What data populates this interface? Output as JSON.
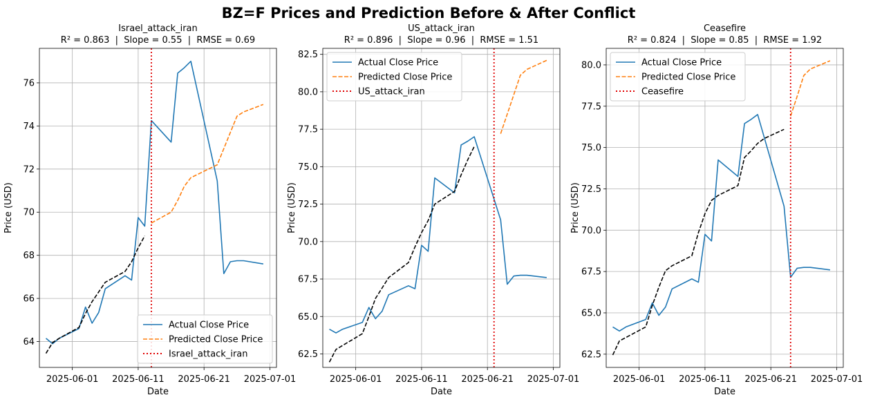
{
  "figure_title": "BZ=F Prices and Prediction Before & After Conflict",
  "chart_data": [
    {
      "type": "line",
      "title": "Israel_attack_iran",
      "subtitle": "R² = 0.863  |  Slope = 0.55  |  RMSE = 0.69",
      "xlabel": "Date",
      "ylabel": "Price (USD)",
      "xlim": [
        "2025-05-27",
        "2025-07-02"
      ],
      "ylim": [
        62.8,
        77.6
      ],
      "xticks": [
        "2025-06-01",
        "2025-06-11",
        "2025-06-21",
        "2025-07-01"
      ],
      "yticks": [
        64,
        66,
        68,
        70,
        72,
        74,
        76
      ],
      "grid": true,
      "legend_position": "lower-right",
      "event_date": "2025-06-13",
      "series": [
        {
          "name": "Actual Close Price",
          "color": "#1f77b4",
          "style": "solid",
          "x": [
            "2025-05-28",
            "2025-05-29",
            "2025-05-30",
            "2025-06-02",
            "2025-06-03",
            "2025-06-04",
            "2025-06-05",
            "2025-06-06",
            "2025-06-09",
            "2025-06-10",
            "2025-06-11",
            "2025-06-12",
            "2025-06-13",
            "2025-06-16",
            "2025-06-17",
            "2025-06-18",
            "2025-06-19",
            "2025-06-23",
            "2025-06-24",
            "2025-06-25",
            "2025-06-26",
            "2025-06-27",
            "2025-06-30"
          ],
          "y": [
            64.15,
            63.9,
            64.15,
            64.6,
            65.6,
            64.85,
            65.35,
            66.45,
            67.05,
            66.85,
            69.75,
            69.35,
            74.25,
            73.25,
            76.45,
            76.7,
            77.0,
            71.45,
            67.15,
            67.7,
            67.75,
            67.75,
            67.6
          ]
        },
        {
          "name": "Predicted Close Price",
          "color": "#ff7f0e",
          "style": "dashed",
          "x": [
            "2025-06-13",
            "2025-06-16",
            "2025-06-17",
            "2025-06-18",
            "2025-06-19",
            "2025-06-23",
            "2025-06-24",
            "2025-06-25",
            "2025-06-26",
            "2025-06-27",
            "2025-06-30"
          ],
          "y": [
            69.5,
            70.0,
            70.55,
            71.2,
            71.6,
            72.2,
            72.95,
            73.7,
            74.45,
            74.65,
            75.0
          ]
        },
        {
          "name": "",
          "color": "#000000",
          "style": "dashed",
          "x": [
            "2025-05-28",
            "2025-05-29",
            "2025-05-30",
            "2025-06-02",
            "2025-06-03",
            "2025-06-04",
            "2025-06-05",
            "2025-06-06",
            "2025-06-09",
            "2025-06-10",
            "2025-06-11",
            "2025-06-12"
          ],
          "y": [
            63.45,
            63.95,
            64.15,
            64.65,
            65.3,
            65.85,
            66.3,
            66.75,
            67.25,
            67.7,
            68.35,
            68.9
          ]
        }
      ],
      "legend": [
        {
          "label": "Actual Close Price",
          "color": "#1f77b4",
          "style": "solid"
        },
        {
          "label": "Predicted Close Price",
          "color": "#ff7f0e",
          "style": "dashed"
        },
        {
          "label": "Israel_attack_iran",
          "color": "#e00000",
          "style": "dotted"
        }
      ]
    },
    {
      "type": "line",
      "title": "US_attack_iran",
      "subtitle": "R² = 0.896  |  Slope = 0.96  |  RMSE = 1.51",
      "xlabel": "Date",
      "ylabel": "Price (USD)",
      "xlim": [
        "2025-05-27",
        "2025-07-02"
      ],
      "ylim": [
        61.6,
        82.9
      ],
      "xticks": [
        "2025-06-01",
        "2025-06-11",
        "2025-06-21",
        "2025-07-01"
      ],
      "yticks": [
        62.5,
        65.0,
        67.5,
        70.0,
        72.5,
        75.0,
        77.5,
        80.0,
        82.5
      ],
      "grid": true,
      "legend_position": "upper-left",
      "event_date": "2025-06-22",
      "series": [
        {
          "name": "Actual Close Price",
          "color": "#1f77b4",
          "style": "solid",
          "x": [
            "2025-05-28",
            "2025-05-29",
            "2025-05-30",
            "2025-06-02",
            "2025-06-03",
            "2025-06-04",
            "2025-06-05",
            "2025-06-06",
            "2025-06-09",
            "2025-06-10",
            "2025-06-11",
            "2025-06-12",
            "2025-06-13",
            "2025-06-16",
            "2025-06-17",
            "2025-06-18",
            "2025-06-19",
            "2025-06-23",
            "2025-06-24",
            "2025-06-25",
            "2025-06-26",
            "2025-06-27",
            "2025-06-30"
          ],
          "y": [
            64.15,
            63.9,
            64.15,
            64.6,
            65.6,
            64.85,
            65.35,
            66.45,
            67.05,
            66.85,
            69.75,
            69.35,
            74.25,
            73.25,
            76.45,
            76.7,
            77.0,
            71.45,
            67.15,
            67.7,
            67.75,
            67.75,
            67.6
          ]
        },
        {
          "name": "Predicted Close Price",
          "color": "#ff7f0e",
          "style": "dashed",
          "x": [
            "2025-06-23",
            "2025-06-24",
            "2025-06-25",
            "2025-06-26",
            "2025-06-27",
            "2025-06-30"
          ],
          "y": [
            77.2,
            78.5,
            79.8,
            81.1,
            81.5,
            82.1
          ]
        },
        {
          "name": "",
          "color": "#000000",
          "style": "dashed",
          "x": [
            "2025-05-28",
            "2025-05-29",
            "2025-06-02",
            "2025-06-03",
            "2025-06-04",
            "2025-06-05",
            "2025-06-06",
            "2025-06-09",
            "2025-06-10",
            "2025-06-11",
            "2025-06-12",
            "2025-06-13",
            "2025-06-16",
            "2025-06-17",
            "2025-06-18",
            "2025-06-19"
          ],
          "y": [
            61.95,
            62.8,
            63.85,
            65.0,
            66.2,
            66.9,
            67.6,
            68.6,
            69.65,
            70.6,
            71.4,
            72.5,
            73.35,
            74.45,
            75.45,
            76.35
          ]
        }
      ],
      "legend": [
        {
          "label": "Actual Close Price",
          "color": "#1f77b4",
          "style": "solid"
        },
        {
          "label": "Predicted Close Price",
          "color": "#ff7f0e",
          "style": "dashed"
        },
        {
          "label": "US_attack_iran",
          "color": "#e00000",
          "style": "dotted"
        }
      ]
    },
    {
      "type": "line",
      "title": "Ceasefire",
      "subtitle": "R² = 0.824  |  Slope = 0.85  |  RMSE = 1.92",
      "xlabel": "Date",
      "ylabel": "Price (USD)",
      "xlim": [
        "2025-05-27",
        "2025-07-02"
      ],
      "ylim": [
        61.7,
        81.0
      ],
      "xticks": [
        "2025-06-01",
        "2025-06-11",
        "2025-06-21",
        "2025-07-01"
      ],
      "yticks": [
        62.5,
        65.0,
        67.5,
        70.0,
        72.5,
        75.0,
        77.5,
        80.0
      ],
      "grid": true,
      "legend_position": "upper-left",
      "event_date": "2025-06-24",
      "series": [
        {
          "name": "Actual Close Price",
          "color": "#1f77b4",
          "style": "solid",
          "x": [
            "2025-05-28",
            "2025-05-29",
            "2025-05-30",
            "2025-06-02",
            "2025-06-03",
            "2025-06-04",
            "2025-06-05",
            "2025-06-06",
            "2025-06-09",
            "2025-06-10",
            "2025-06-11",
            "2025-06-12",
            "2025-06-13",
            "2025-06-16",
            "2025-06-17",
            "2025-06-18",
            "2025-06-19",
            "2025-06-23",
            "2025-06-24",
            "2025-06-25",
            "2025-06-26",
            "2025-06-27",
            "2025-06-30"
          ],
          "y": [
            64.15,
            63.9,
            64.15,
            64.6,
            65.6,
            64.85,
            65.35,
            66.45,
            67.05,
            66.85,
            69.75,
            69.35,
            74.25,
            73.25,
            76.45,
            76.7,
            77.0,
            71.45,
            67.15,
            67.7,
            67.75,
            67.75,
            67.6
          ]
        },
        {
          "name": "Predicted Close Price",
          "color": "#ff7f0e",
          "style": "dashed",
          "x": [
            "2025-06-24",
            "2025-06-25",
            "2025-06-26",
            "2025-06-27",
            "2025-06-30"
          ],
          "y": [
            76.9,
            78.1,
            79.35,
            79.75,
            80.25
          ]
        },
        {
          "name": "",
          "color": "#000000",
          "style": "dashed",
          "x": [
            "2025-05-28",
            "2025-05-29",
            "2025-06-02",
            "2025-06-03",
            "2025-06-04",
            "2025-06-05",
            "2025-06-06",
            "2025-06-09",
            "2025-06-10",
            "2025-06-11",
            "2025-06-12",
            "2025-06-13",
            "2025-06-16",
            "2025-06-17",
            "2025-06-18",
            "2025-06-19",
            "2025-06-20",
            "2025-06-23"
          ],
          "y": [
            62.45,
            63.3,
            64.15,
            65.45,
            66.55,
            67.55,
            67.85,
            68.45,
            69.85,
            71.0,
            71.8,
            72.1,
            72.7,
            74.4,
            74.8,
            75.25,
            75.55,
            76.1
          ]
        }
      ],
      "legend": [
        {
          "label": "Actual Close Price",
          "color": "#1f77b4",
          "style": "solid"
        },
        {
          "label": "Predicted Close Price",
          "color": "#ff7f0e",
          "style": "dashed"
        },
        {
          "label": "Ceasefire",
          "color": "#e00000",
          "style": "dotted"
        }
      ]
    }
  ]
}
